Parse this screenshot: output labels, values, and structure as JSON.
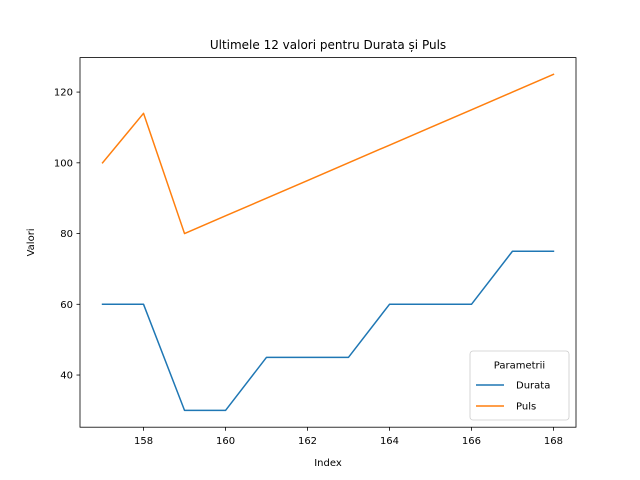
{
  "chart_data": {
    "type": "line",
    "title": "Ultimele 12 valori pentru Durata și Puls",
    "xlabel": "Index",
    "ylabel": "Valori",
    "x": [
      157,
      158,
      159,
      160,
      161,
      162,
      163,
      164,
      165,
      166,
      167,
      168
    ],
    "series": [
      {
        "name": "Durata",
        "color": "#1f77b4",
        "values": [
          60,
          60,
          30,
          30,
          45,
          45,
          45,
          60,
          60,
          60,
          75,
          75
        ]
      },
      {
        "name": "Puls",
        "color": "#ff7f0e",
        "values": [
          100,
          114,
          80,
          85,
          90,
          95,
          100,
          105,
          110,
          115,
          120,
          125
        ]
      }
    ],
    "xlim": [
      156.45,
      168.55
    ],
    "ylim": [
      25.25,
      129.75
    ],
    "xticks": [
      158,
      160,
      162,
      164,
      166,
      168
    ],
    "yticks": [
      40,
      60,
      80,
      100,
      120
    ],
    "legend": {
      "title": "Parametrii",
      "position": "lower-right"
    },
    "grid": false
  }
}
